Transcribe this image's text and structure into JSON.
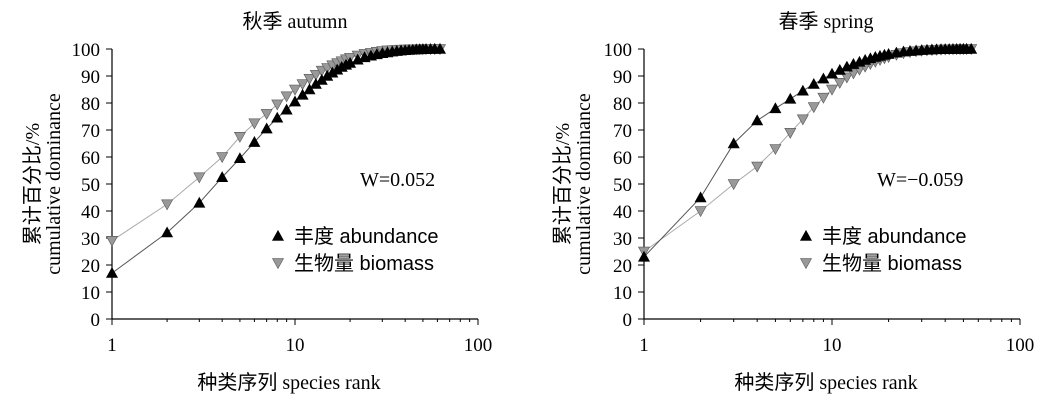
{
  "chart_data": [
    {
      "type": "line",
      "title": "秋季 autumn",
      "xlabel": "种类序列 species rank",
      "ylabel_zh": "累计百分比/%",
      "ylabel_en": "cumulative dominance",
      "x_scale": "log",
      "xlim": [
        1,
        100
      ],
      "ylim": [
        0,
        100
      ],
      "x_ticks": [
        "1",
        "10",
        "100"
      ],
      "y_ticks": [
        "0",
        "10",
        "20",
        "30",
        "40",
        "50",
        "60",
        "70",
        "80",
        "90",
        "100"
      ],
      "annotation": "W=0.052",
      "legend_position": "lower-right",
      "series": [
        {
          "name": "丰度 abundance",
          "marker": "triangle-up",
          "color": "#000000",
          "x": [
            1,
            2,
            3,
            4,
            5,
            6,
            7,
            8,
            9,
            10,
            11,
            12,
            13,
            14,
            15,
            16,
            17,
            18,
            19,
            20,
            22,
            24,
            26,
            28,
            30,
            32,
            34,
            36,
            38,
            40,
            42,
            44,
            46,
            48,
            50,
            52,
            55,
            58,
            62
          ],
          "y": [
            17,
            32,
            43,
            52.5,
            59.5,
            65.5,
            70.5,
            74.5,
            77.5,
            80.5,
            83,
            85,
            87,
            88.5,
            90,
            91.2,
            92.3,
            93.3,
            94.1,
            94.8,
            96,
            96.9,
            97.5,
            98,
            98.4,
            98.7,
            99,
            99.2,
            99.4,
            99.5,
            99.6,
            99.7,
            99.8,
            99.85,
            99.9,
            99.93,
            99.96,
            99.98,
            100
          ]
        },
        {
          "name": "生物量 biomass",
          "marker": "triangle-down",
          "color": "#999999",
          "x": [
            1,
            2,
            3,
            4,
            5,
            6,
            7,
            8,
            9,
            10,
            11,
            12,
            13,
            14,
            15,
            16,
            17,
            18,
            19,
            20,
            22,
            24,
            26,
            28,
            30,
            32,
            34,
            36,
            38,
            40,
            42,
            44,
            46,
            48,
            50,
            52,
            55,
            58,
            62
          ],
          "y": [
            29,
            42.5,
            52.5,
            60,
            67.5,
            72.5,
            76,
            79.5,
            82.5,
            85,
            87,
            89,
            90.5,
            92,
            93,
            94,
            94.8,
            95.5,
            96.2,
            96.8,
            97.6,
            98.2,
            98.6,
            99,
            99.3,
            99.5,
            99.6,
            99.7,
            99.8,
            99.85,
            99.9,
            99.92,
            99.94,
            99.96,
            99.97,
            99.98,
            99.99,
            100,
            100
          ]
        }
      ]
    },
    {
      "type": "line",
      "title": "春季 spring",
      "xlabel": "种类序列 species rank",
      "ylabel_zh": "累计百分比/%",
      "ylabel_en": "cumulative dominance",
      "x_scale": "log",
      "xlim": [
        1,
        100
      ],
      "ylim": [
        0,
        100
      ],
      "x_ticks": [
        "1",
        "10",
        "100"
      ],
      "y_ticks": [
        "0",
        "10",
        "20",
        "30",
        "40",
        "50",
        "60",
        "70",
        "80",
        "90",
        "100"
      ],
      "annotation": "W=−0.059",
      "legend_position": "lower-right",
      "series": [
        {
          "name": "丰度 abundance",
          "marker": "triangle-up",
          "color": "#000000",
          "x": [
            1,
            2,
            3,
            4,
            5,
            6,
            7,
            8,
            9,
            10,
            11,
            12,
            13,
            14,
            15,
            16,
            17,
            18,
            19,
            20,
            22,
            24,
            26,
            28,
            30,
            32,
            34,
            36,
            38,
            40,
            42,
            44,
            46,
            48,
            50,
            52,
            55
          ],
          "y": [
            23,
            45,
            65,
            73.5,
            78,
            81.5,
            84.5,
            87,
            89,
            90.8,
            92.2,
            93.4,
            94.4,
            95.2,
            95.9,
            96.5,
            97,
            97.4,
            97.8,
            98.1,
            98.6,
            99,
            99.2,
            99.4,
            99.55,
            99.65,
            99.75,
            99.82,
            99.87,
            99.9,
            99.93,
            99.95,
            99.97,
            99.98,
            99.99,
            100,
            100
          ]
        },
        {
          "name": "生物量 biomass",
          "marker": "triangle-down",
          "color": "#999999",
          "x": [
            1,
            2,
            3,
            4,
            5,
            6,
            7,
            8,
            9,
            10,
            11,
            12,
            13,
            14,
            15,
            16,
            17,
            18,
            19,
            20,
            22,
            24,
            26,
            28,
            30,
            32,
            34,
            36,
            38,
            40,
            42,
            44,
            46,
            48,
            50,
            52,
            55
          ],
          "y": [
            25,
            40,
            50,
            56.5,
            63,
            69,
            74,
            78.5,
            82,
            85,
            87.5,
            89.5,
            91,
            92.4,
            93.5,
            94.5,
            95.3,
            96,
            96.6,
            97.1,
            97.9,
            98.5,
            98.9,
            99.2,
            99.4,
            99.55,
            99.65,
            99.75,
            99.82,
            99.87,
            99.9,
            99.93,
            99.95,
            99.97,
            99.98,
            99.99,
            100
          ]
        }
      ]
    }
  ]
}
